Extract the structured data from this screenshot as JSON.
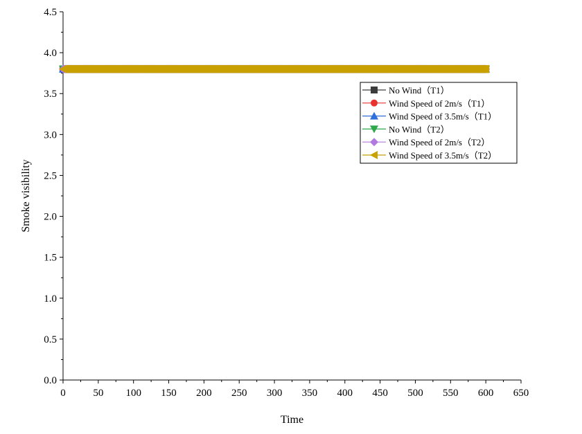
{
  "chart_data": {
    "type": "line",
    "title": "",
    "xlabel": "Time",
    "ylabel": "Smoke visibility",
    "xlim": [
      0,
      650
    ],
    "ylim": [
      0,
      4.5
    ],
    "xticks": [
      "0",
      "50",
      "100",
      "150",
      "200",
      "250",
      "300",
      "350",
      "400",
      "450",
      "500",
      "550",
      "600",
      "650"
    ],
    "yticks": [
      "0.0",
      "0.5",
      "1.0",
      "1.5",
      "2.0",
      "2.5",
      "3.0",
      "3.5",
      "4.0",
      "4.5"
    ],
    "x_range": [
      0,
      600
    ],
    "x_step": 1,
    "legend_position": "top-right",
    "series": [
      {
        "name": "No Wind（T1）",
        "value": 3.8,
        "color": "#3c3c3c",
        "marker": "square"
      },
      {
        "name": "Wind Speed of 2m/s（T1）",
        "value": 3.8,
        "color": "#e8322e",
        "marker": "circle"
      },
      {
        "name": "Wind Speed of 3.5m/s（T1）",
        "value": 3.8,
        "color": "#2f6fdc",
        "marker": "triangle-up"
      },
      {
        "name": "No Wind（T2）",
        "value": 3.8,
        "color": "#2ea84a",
        "marker": "triangle-down"
      },
      {
        "name": "Wind Speed of 2m/s（T2）",
        "value": 3.8,
        "color": "#b27ae0",
        "marker": "diamond"
      },
      {
        "name": "Wind Speed of 3.5m/s（T2）",
        "value": 3.8,
        "color": "#c9a100",
        "marker": "triangle-left"
      }
    ]
  }
}
